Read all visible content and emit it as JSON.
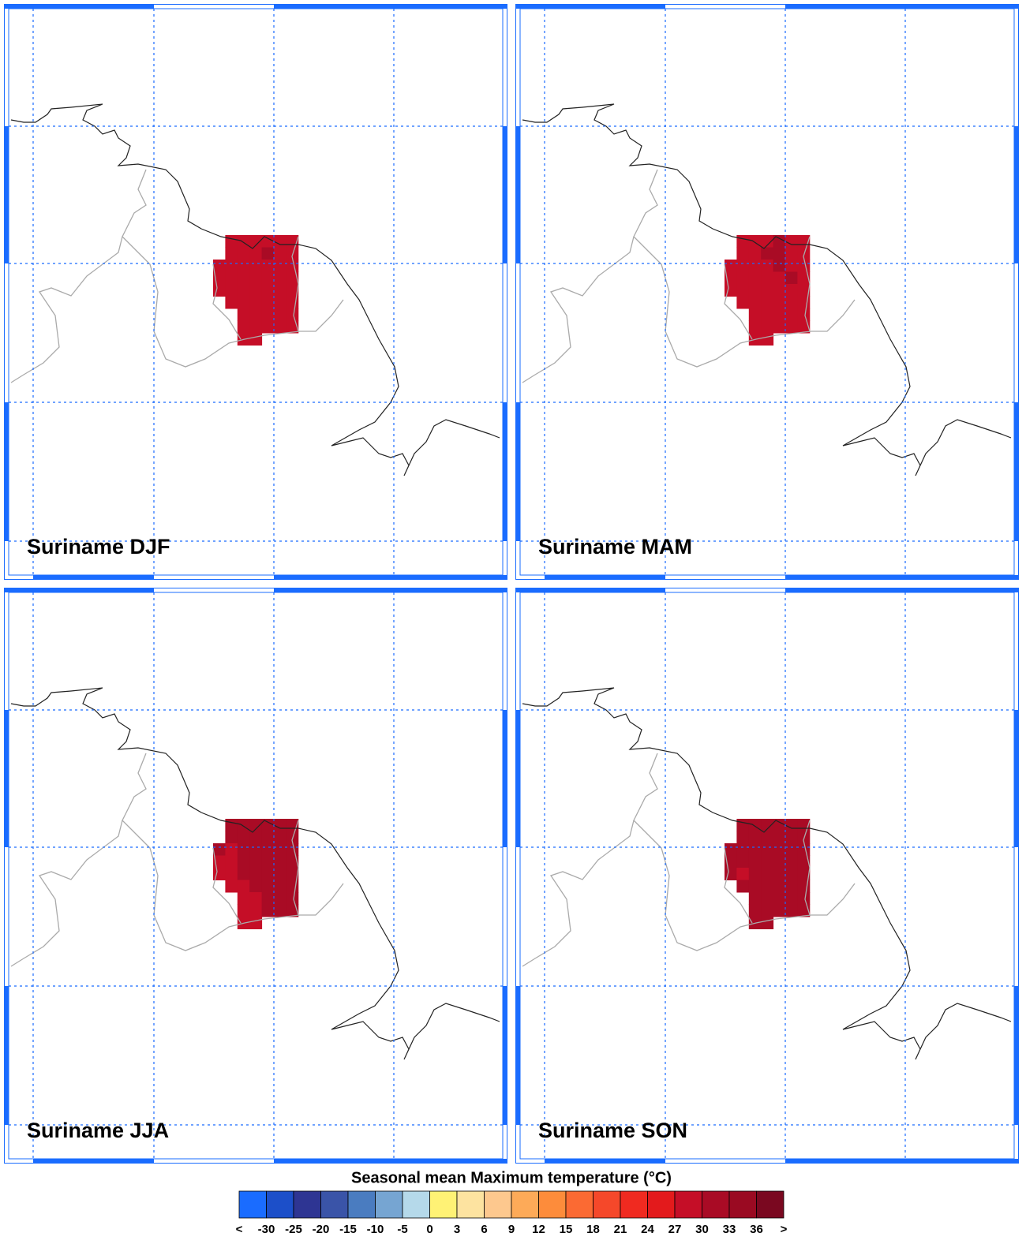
{
  "panels": [
    {
      "title": "Suriname DJF"
    },
    {
      "title": "Suriname MAM"
    },
    {
      "title": "Suriname JJA"
    },
    {
      "title": "Suriname SON"
    }
  ],
  "colorbar": {
    "title": "Seasonal mean Maximum temperature (°C)",
    "labels": [
      "<",
      -30,
      -25,
      -20,
      -15,
      -10,
      -5,
      0,
      3,
      6,
      9,
      12,
      15,
      18,
      21,
      24,
      27,
      30,
      33,
      36,
      ">"
    ],
    "colors": [
      "#1a6cff",
      "#1c4fc9",
      "#2e3593",
      "#3a54a8",
      "#4a7cc0",
      "#76a5d2",
      "#b5d9ea",
      "#fff275",
      "#fde3a0",
      "#fdc88e",
      "#fdaa58",
      "#fd8c3b",
      "#fb6a33",
      "#f5482a",
      "#f02a20",
      "#e31a1c",
      "#c50e27",
      "#a90b25",
      "#9a0a22",
      "#7a0820"
    ]
  }
}
